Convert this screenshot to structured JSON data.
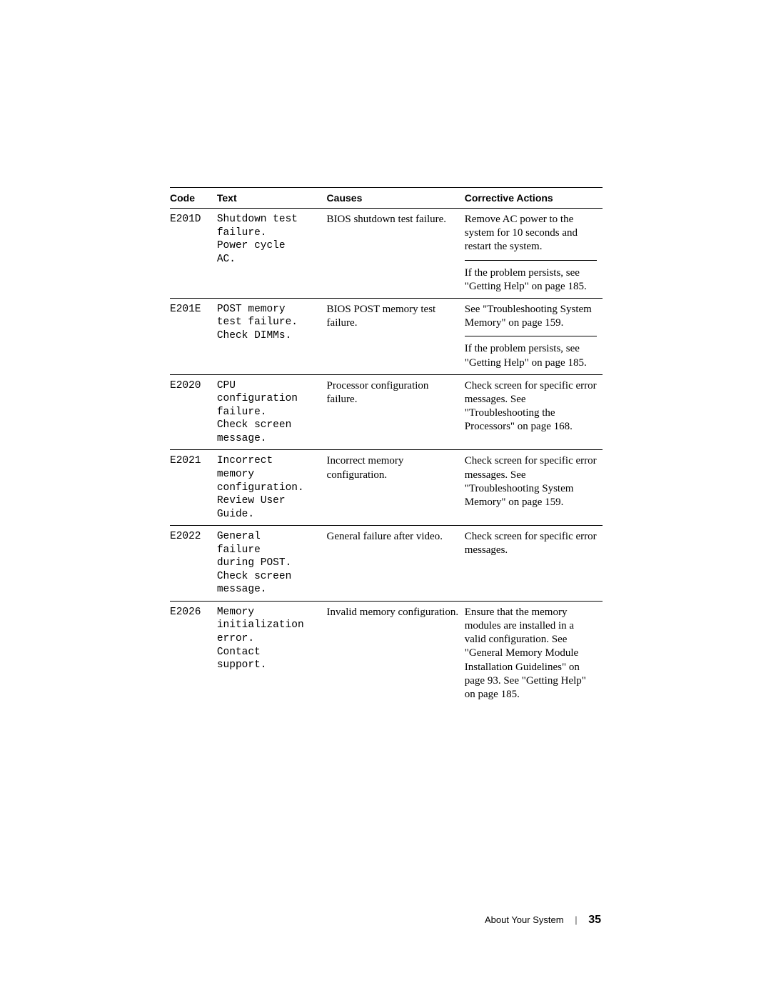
{
  "table": {
    "headers": {
      "code": "Code",
      "text": "Text",
      "causes": "Causes",
      "actions": "Corrective Actions"
    },
    "rows": [
      {
        "code": "E201D",
        "text": "Shutdown test\nfailure.\nPower cycle\nAC.",
        "causes": "BIOS shutdown test failure.",
        "actions": [
          "Remove AC power to the system for 10 seconds and restart the system.",
          "If the problem persists, see \"Getting Help\" on page 185."
        ]
      },
      {
        "code": "E201E",
        "text": "POST memory\ntest failure.\nCheck DIMMs.",
        "causes": "BIOS POST memory test failure.",
        "actions": [
          "See \"Troubleshooting System Memory\" on page 159.",
          "If the problem persists, see \"Getting Help\" on page 185."
        ]
      },
      {
        "code": "E2020",
        "text": "CPU\nconfiguration\nfailure.\nCheck screen\nmessage.",
        "causes": "Processor configuration failure.",
        "actions": [
          "Check screen for specific error messages. See \"Troubleshooting the Processors\" on page 168."
        ]
      },
      {
        "code": "E2021",
        "text": "Incorrect\nmemory\nconfiguration.\nReview User\nGuide.",
        "causes": "Incorrect memory configuration.",
        "actions": [
          "Check screen for specific error messages. See \"Troubleshooting System Memory\" on page 159."
        ]
      },
      {
        "code": "E2022",
        "text": "General\nfailure\nduring POST.\nCheck screen\nmessage.",
        "causes": "General failure after video.",
        "actions": [
          "Check screen for specific error messages."
        ]
      },
      {
        "code": "E2026",
        "text": "Memory\ninitialization\nerror.\nContact\nsupport.",
        "causes": "Invalid memory configuration.",
        "actions": [
          "Ensure that the memory modules are installed in a valid configuration. See \"General Memory Module Installation Guidelines\" on page 93. See \"Getting Help\" on page 185."
        ]
      }
    ]
  },
  "footer": {
    "section": "About Your System",
    "page": "35"
  },
  "colors": {
    "text": "#000000",
    "background": "#ffffff",
    "rule": "#000000"
  },
  "typography": {
    "header_font": "Arial",
    "header_size_pt": 10,
    "body_font": "Georgia",
    "body_size_pt": 11,
    "mono_font": "Courier New",
    "mono_size_pt": 10.5
  }
}
